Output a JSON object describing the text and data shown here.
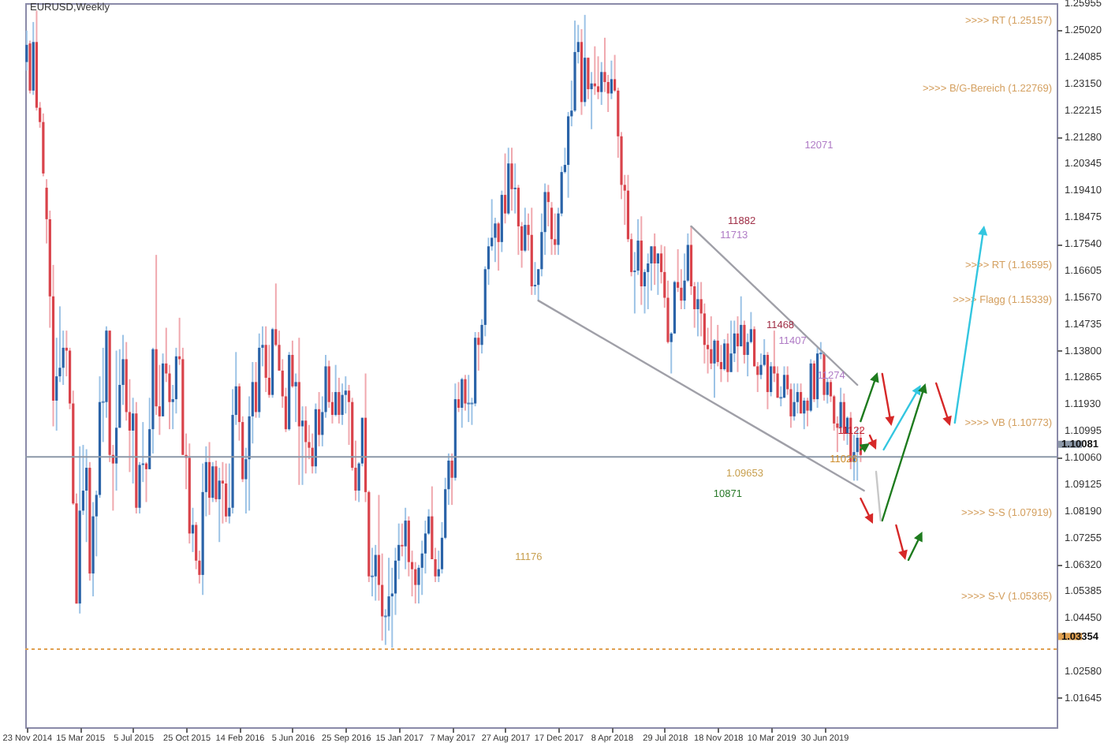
{
  "chart_data": {
    "type": "candlestick",
    "title": "EURUSD,Weekly",
    "xlim": [
      "2014-11-20",
      "2020-11-01"
    ],
    "xticks": [
      {
        "value": "2014-11-23",
        "label": "23 Nov 2014"
      },
      {
        "value": "2015-03-15",
        "label": "15 Mar 2015"
      },
      {
        "value": "2015-07-05",
        "label": "5 Jul 2015"
      },
      {
        "value": "2015-10-25",
        "label": "25 Oct 2015"
      },
      {
        "value": "2016-02-14",
        "label": "14 Feb 2016"
      },
      {
        "value": "2016-06-05",
        "label": "5 Jun 2016"
      },
      {
        "value": "2016-09-25",
        "label": "25 Sep 2016"
      },
      {
        "value": "2017-01-15",
        "label": "15 Jan 2017"
      },
      {
        "value": "2017-05-07",
        "label": "7 May 2017"
      },
      {
        "value": "2017-08-27",
        "label": "27 Aug 2017"
      },
      {
        "value": "2017-12-17",
        "label": "17 Dec 2017"
      },
      {
        "value": "2018-04-08",
        "label": "8 Apr 2018"
      },
      {
        "value": "2018-07-29",
        "label": "29 Jul 2018"
      },
      {
        "value": "2018-11-18",
        "label": "18 Nov 2018"
      },
      {
        "value": "2019-03-10",
        "label": "10 Mar 2019"
      },
      {
        "value": "2019-06-30",
        "label": "30 Jun 2019"
      }
    ],
    "ylim": [
      1.0062,
      1.2596
    ],
    "yticks": [
      {
        "value": 1.25955,
        "label": "1.25955"
      },
      {
        "value": 1.2502,
        "label": "1.25020"
      },
      {
        "value": 1.24085,
        "label": "1.24085"
      },
      {
        "value": 1.2315,
        "label": "1.23150"
      },
      {
        "value": 1.22215,
        "label": "1.22215"
      },
      {
        "value": 1.2128,
        "label": "1.21280"
      },
      {
        "value": 1.20345,
        "label": "1.20345"
      },
      {
        "value": 1.1941,
        "label": "1.19410"
      },
      {
        "value": 1.18475,
        "label": "1.18475"
      },
      {
        "value": 1.1754,
        "label": "1.17540"
      },
      {
        "value": 1.16605,
        "label": "1.16605"
      },
      {
        "value": 1.1567,
        "label": "1.15670"
      },
      {
        "value": 1.14735,
        "label": "1.14735"
      },
      {
        "value": 1.138,
        "label": "1.13800"
      },
      {
        "value": 1.12865,
        "label": "1.12865"
      },
      {
        "value": 1.1193,
        "label": "1.11930"
      },
      {
        "value": 1.10995,
        "label": "1.10995"
      },
      {
        "value": 1.1006,
        "label": "1.10060"
      },
      {
        "value": 1.09125,
        "label": "1.09125"
      },
      {
        "value": 1.0819,
        "label": "1.08190"
      },
      {
        "value": 1.07255,
        "label": "1.07255"
      },
      {
        "value": 1.0632,
        "label": "1.06320"
      },
      {
        "value": 1.05385,
        "label": "1.05385"
      },
      {
        "value": 1.0445,
        "label": "1.04450"
      },
      {
        "value": 1.0258,
        "label": "1.02580"
      },
      {
        "value": 1.01645,
        "label": "1.01645"
      }
    ],
    "x": [
      "2014-11-23",
      "2014-11-30",
      "2014-12-07",
      "2014-12-14",
      "2014-12-21",
      "2014-12-28",
      "2015-01-04",
      "2015-01-11",
      "2015-01-18",
      "2015-01-25",
      "2015-02-01",
      "2015-02-08",
      "2015-02-15",
      "2015-02-22",
      "2015-03-01",
      "2015-03-08",
      "2015-03-15",
      "2015-03-22",
      "2015-03-29",
      "2015-04-05",
      "2015-04-12",
      "2015-04-19",
      "2015-04-26",
      "2015-05-03",
      "2015-05-10",
      "2015-05-17",
      "2015-05-24",
      "2015-05-31",
      "2015-06-07",
      "2015-06-14",
      "2015-06-21",
      "2015-06-28",
      "2015-07-05",
      "2015-07-12",
      "2015-07-19",
      "2015-07-26",
      "2015-08-02",
      "2015-08-09",
      "2015-08-16",
      "2015-08-23",
      "2015-08-30",
      "2015-09-06",
      "2015-09-13",
      "2015-09-20",
      "2015-09-27",
      "2015-10-04",
      "2015-10-11",
      "2015-10-18",
      "2015-10-25",
      "2015-11-01",
      "2015-11-08",
      "2015-11-15",
      "2015-11-22",
      "2015-11-29",
      "2015-12-06",
      "2015-12-13",
      "2015-12-20",
      "2015-12-27",
      "2016-01-03",
      "2016-01-10",
      "2016-01-17",
      "2016-01-24",
      "2016-01-31",
      "2016-02-07",
      "2016-02-14",
      "2016-02-21",
      "2016-02-28",
      "2016-03-06",
      "2016-03-13",
      "2016-03-20",
      "2016-03-27",
      "2016-04-03",
      "2016-04-10",
      "2016-04-17",
      "2016-04-24",
      "2016-05-01",
      "2016-05-08",
      "2016-05-15",
      "2016-05-22",
      "2016-05-29",
      "2016-06-05",
      "2016-06-12",
      "2016-06-19",
      "2016-06-26",
      "2016-07-03",
      "2016-07-10",
      "2016-07-17",
      "2016-07-24",
      "2016-07-31",
      "2016-08-07",
      "2016-08-14",
      "2016-08-21",
      "2016-08-28",
      "2016-09-04",
      "2016-09-11",
      "2016-09-18",
      "2016-09-25",
      "2016-10-02",
      "2016-10-09",
      "2016-10-16",
      "2016-10-23",
      "2016-10-30",
      "2016-11-06",
      "2016-11-13",
      "2016-11-20",
      "2016-11-27",
      "2016-12-04",
      "2016-12-11",
      "2016-12-18",
      "2016-12-25",
      "2017-01-01",
      "2017-01-08",
      "2017-01-15",
      "2017-01-22",
      "2017-01-29",
      "2017-02-05",
      "2017-02-12",
      "2017-02-19",
      "2017-02-26",
      "2017-03-05",
      "2017-03-12",
      "2017-03-19",
      "2017-03-26",
      "2017-04-02",
      "2017-04-09",
      "2017-04-16",
      "2017-04-23",
      "2017-04-30",
      "2017-05-07",
      "2017-05-14",
      "2017-05-21",
      "2017-05-28",
      "2017-06-04",
      "2017-06-11",
      "2017-06-18",
      "2017-06-25",
      "2017-07-02",
      "2017-07-09",
      "2017-07-16",
      "2017-07-23",
      "2017-07-30",
      "2017-08-06",
      "2017-08-13",
      "2017-08-20",
      "2017-08-27",
      "2017-09-03",
      "2017-09-10",
      "2017-09-17",
      "2017-09-24",
      "2017-10-01",
      "2017-10-08",
      "2017-10-15",
      "2017-10-22",
      "2017-10-29",
      "2017-11-05",
      "2017-11-12",
      "2017-11-19",
      "2017-11-26",
      "2017-12-03",
      "2017-12-10",
      "2017-12-17",
      "2017-12-24",
      "2017-12-31",
      "2018-01-07",
      "2018-01-14",
      "2018-01-21",
      "2018-01-28",
      "2018-02-04",
      "2018-02-11",
      "2018-02-18",
      "2018-02-25",
      "2018-03-04",
      "2018-03-11",
      "2018-03-18",
      "2018-03-25",
      "2018-04-01",
      "2018-04-08",
      "2018-04-15",
      "2018-04-22",
      "2018-04-29",
      "2018-05-06",
      "2018-05-13",
      "2018-05-20",
      "2018-05-27",
      "2018-06-03",
      "2018-06-10",
      "2018-06-17",
      "2018-06-24",
      "2018-07-01",
      "2018-07-08",
      "2018-07-15",
      "2018-07-22",
      "2018-07-29",
      "2018-08-05",
      "2018-08-12",
      "2018-08-19",
      "2018-08-26",
      "2018-09-02",
      "2018-09-09",
      "2018-09-16",
      "2018-09-23",
      "2018-09-30",
      "2018-10-07",
      "2018-10-14",
      "2018-10-21",
      "2018-10-28",
      "2018-11-04",
      "2018-11-11",
      "2018-11-18",
      "2018-11-25",
      "2018-12-02",
      "2018-12-09",
      "2018-12-16",
      "2018-12-23",
      "2018-12-30",
      "2019-01-06",
      "2019-01-13",
      "2019-01-20",
      "2019-01-27",
      "2019-02-03",
      "2019-02-10",
      "2019-02-17",
      "2019-02-24",
      "2019-03-03",
      "2019-03-10",
      "2019-03-17",
      "2019-03-24",
      "2019-03-31",
      "2019-04-07",
      "2019-04-14",
      "2019-04-21",
      "2019-04-28",
      "2019-05-05",
      "2019-05-12",
      "2019-05-19",
      "2019-05-26",
      "2019-06-02",
      "2019-06-09",
      "2019-06-16",
      "2019-06-23",
      "2019-06-30",
      "2019-07-07",
      "2019-07-14",
      "2019-07-21",
      "2019-07-28",
      "2019-08-04",
      "2019-08-11",
      "2019-08-18",
      "2019-08-25",
      "2019-09-01",
      "2019-09-08",
      "2019-09-15"
    ],
    "ohlc": [
      [
        1.239,
        1.25,
        1.236,
        1.245
      ],
      [
        1.2455,
        1.2465,
        1.228,
        1.229
      ],
      [
        1.229,
        1.253,
        1.2275,
        1.246
      ],
      [
        1.246,
        1.257,
        1.222,
        1.223
      ],
      [
        1.223,
        1.225,
        1.216,
        1.218
      ],
      [
        1.218,
        1.221,
        1.199,
        1.2
      ],
      [
        1.195,
        1.198,
        1.1755,
        1.184
      ],
      [
        1.184,
        1.187,
        1.146,
        1.157
      ],
      [
        1.157,
        1.168,
        1.1115,
        1.1205
      ],
      [
        1.1205,
        1.1425,
        1.11,
        1.129
      ],
      [
        1.129,
        1.1535,
        1.127,
        1.132
      ],
      [
        1.132,
        1.145,
        1.126,
        1.139
      ],
      [
        1.139,
        1.145,
        1.129,
        1.138
      ],
      [
        1.138,
        1.139,
        1.1175,
        1.1195
      ],
      [
        1.1195,
        1.124,
        1.084,
        1.0845
      ],
      [
        1.0845,
        1.088,
        1.0495,
        1.0495
      ],
      [
        1.0495,
        1.1045,
        1.046,
        1.082
      ],
      [
        1.082,
        1.105,
        1.0805,
        1.089
      ],
      [
        1.089,
        1.1035,
        1.071,
        1.097
      ],
      [
        1.097,
        1.099,
        1.0575,
        1.06
      ],
      [
        1.06,
        1.085,
        1.052,
        1.08
      ],
      [
        1.08,
        1.089,
        1.066,
        1.0875
      ],
      [
        1.0875,
        1.129,
        1.0865,
        1.12
      ],
      [
        1.12,
        1.139,
        1.106,
        1.12
      ],
      [
        1.12,
        1.1465,
        1.1145,
        1.145
      ],
      [
        1.145,
        1.145,
        1.099,
        1.1015
      ],
      [
        1.1015,
        1.105,
        1.082,
        1.0985
      ],
      [
        1.0985,
        1.138,
        1.089,
        1.111
      ],
      [
        1.111,
        1.1385,
        1.111,
        1.126
      ],
      [
        1.126,
        1.1435,
        1.119,
        1.135
      ],
      [
        1.135,
        1.141,
        1.1135,
        1.1165
      ],
      [
        1.1165,
        1.128,
        1.0955,
        1.11
      ],
      [
        1.11,
        1.1215,
        1.0915,
        1.116
      ],
      [
        1.116,
        1.12,
        1.081,
        1.083
      ],
      [
        1.083,
        1.099,
        1.081,
        1.098
      ],
      [
        1.098,
        1.113,
        1.092,
        1.0985
      ],
      [
        1.0985,
        1.099,
        1.085,
        1.0965
      ],
      [
        1.0965,
        1.1215,
        1.0965,
        1.1105
      ],
      [
        1.1105,
        1.139,
        1.102,
        1.1385
      ],
      [
        1.1385,
        1.1715,
        1.1155,
        1.1185
      ],
      [
        1.1185,
        1.133,
        1.1085,
        1.115
      ],
      [
        1.115,
        1.137,
        1.115,
        1.1335
      ],
      [
        1.1335,
        1.146,
        1.127,
        1.13
      ],
      [
        1.13,
        1.133,
        1.1105,
        1.12
      ],
      [
        1.12,
        1.126,
        1.1105,
        1.121
      ],
      [
        1.121,
        1.139,
        1.116,
        1.136
      ],
      [
        1.136,
        1.1495,
        1.133,
        1.135
      ],
      [
        1.135,
        1.139,
        1.1015,
        1.1015
      ],
      [
        1.1015,
        1.109,
        1.0895,
        1.1005
      ],
      [
        1.1005,
        1.1055,
        1.0705,
        1.074
      ],
      [
        1.074,
        1.083,
        1.0675,
        1.077
      ],
      [
        1.077,
        1.078,
        1.0615,
        1.0645
      ],
      [
        1.0645,
        1.068,
        1.0565,
        1.0595
      ],
      [
        1.0595,
        1.0985,
        1.0525,
        1.0885
      ],
      [
        1.0885,
        1.1045,
        1.08,
        1.099
      ],
      [
        1.099,
        1.106,
        1.0805,
        1.0865
      ],
      [
        1.0865,
        1.099,
        1.085,
        1.0975
      ],
      [
        1.0975,
        1.0995,
        1.085,
        1.086
      ],
      [
        1.086,
        1.097,
        1.071,
        1.0925
      ],
      [
        1.0925,
        1.099,
        1.0775,
        1.0915
      ],
      [
        1.0915,
        1.0985,
        1.078,
        1.08
      ],
      [
        1.08,
        1.0985,
        1.0775,
        1.083
      ],
      [
        1.083,
        1.1245,
        1.081,
        1.1155
      ],
      [
        1.1155,
        1.1375,
        1.112,
        1.1255
      ],
      [
        1.1255,
        1.1265,
        1.1065,
        1.113
      ],
      [
        1.113,
        1.115,
        1.092,
        1.093
      ],
      [
        1.093,
        1.104,
        1.081,
        1.1
      ],
      [
        1.1,
        1.122,
        1.082,
        1.115
      ],
      [
        1.115,
        1.134,
        1.1055,
        1.127
      ],
      [
        1.127,
        1.134,
        1.1145,
        1.1165
      ],
      [
        1.1165,
        1.144,
        1.1145,
        1.139
      ],
      [
        1.139,
        1.1465,
        1.1325,
        1.14
      ],
      [
        1.14,
        1.1465,
        1.1235,
        1.1285
      ],
      [
        1.1285,
        1.14,
        1.1215,
        1.1225
      ],
      [
        1.1225,
        1.146,
        1.1215,
        1.1455
      ],
      [
        1.1455,
        1.1615,
        1.1395,
        1.14
      ],
      [
        1.14,
        1.145,
        1.131,
        1.131
      ],
      [
        1.131,
        1.135,
        1.118,
        1.122
      ],
      [
        1.122,
        1.125,
        1.1095,
        1.1105
      ],
      [
        1.1105,
        1.1375,
        1.11,
        1.1365
      ],
      [
        1.1365,
        1.1415,
        1.125,
        1.1255
      ],
      [
        1.1255,
        1.13,
        1.113,
        1.127
      ],
      [
        1.127,
        1.1425,
        1.091,
        1.1115
      ],
      [
        1.1115,
        1.1185,
        1.091,
        1.1135
      ],
      [
        1.1135,
        1.1185,
        1.095,
        1.106
      ],
      [
        1.106,
        1.112,
        1.1,
        1.104
      ],
      [
        1.104,
        1.109,
        1.095,
        1.0975
      ],
      [
        1.0975,
        1.1195,
        1.095,
        1.1175
      ],
      [
        1.1175,
        1.1235,
        1.1045,
        1.1085
      ],
      [
        1.1085,
        1.122,
        1.1045,
        1.1165
      ],
      [
        1.1165,
        1.1365,
        1.1145,
        1.1325
      ],
      [
        1.1325,
        1.1345,
        1.118,
        1.12
      ],
      [
        1.12,
        1.1235,
        1.1125,
        1.1155
      ],
      [
        1.1155,
        1.133,
        1.115,
        1.1235
      ],
      [
        1.1235,
        1.1285,
        1.1125,
        1.1155
      ],
      [
        1.1155,
        1.1265,
        1.112,
        1.1225
      ],
      [
        1.1225,
        1.129,
        1.116,
        1.124
      ],
      [
        1.124,
        1.126,
        1.105,
        1.12
      ],
      [
        1.12,
        1.1215,
        1.096,
        1.097
      ],
      [
        1.097,
        1.1065,
        1.0855,
        1.089
      ],
      [
        1.089,
        1.099,
        1.085,
        1.0985
      ],
      [
        1.0985,
        1.1145,
        1.0975,
        1.1145
      ],
      [
        1.1145,
        1.13,
        1.085,
        1.0885
      ],
      [
        1.0885,
        1.089,
        1.057,
        1.059
      ],
      [
        1.059,
        1.069,
        1.052,
        1.059
      ],
      [
        1.059,
        1.07,
        1.0505,
        1.0665
      ],
      [
        1.0665,
        1.0875,
        1.0505,
        1.056
      ],
      [
        1.056,
        1.067,
        1.0365,
        1.045
      ],
      [
        1.045,
        1.0475,
        1.035,
        1.045
      ],
      [
        1.045,
        1.0655,
        1.04,
        1.052
      ],
      [
        1.052,
        1.062,
        1.034,
        1.053
      ],
      [
        1.053,
        1.069,
        1.0455,
        1.0645
      ],
      [
        1.0645,
        1.0775,
        1.058,
        1.07
      ],
      [
        1.07,
        1.0775,
        1.066,
        1.0695
      ],
      [
        1.0695,
        1.083,
        1.0615,
        1.0785
      ],
      [
        1.0785,
        1.08,
        1.059,
        1.064
      ],
      [
        1.064,
        1.068,
        1.052,
        1.0615
      ],
      [
        1.0615,
        1.064,
        1.0495,
        1.056
      ],
      [
        1.056,
        1.063,
        1.0495,
        1.062
      ],
      [
        1.062,
        1.0715,
        1.0525,
        1.067
      ],
      [
        1.067,
        1.0785,
        1.06,
        1.074
      ],
      [
        1.074,
        1.0825,
        1.0735,
        1.08
      ],
      [
        1.08,
        1.0905,
        1.065,
        1.065
      ],
      [
        1.065,
        1.069,
        1.057,
        1.059
      ],
      [
        1.059,
        1.068,
        1.057,
        1.0615
      ],
      [
        1.0615,
        1.078,
        1.06,
        1.0725
      ],
      [
        1.0725,
        1.0935,
        1.072,
        1.0895
      ],
      [
        1.0895,
        1.102,
        1.084,
        1.0995
      ],
      [
        1.0995,
        1.102,
        1.084,
        1.0935
      ],
      [
        1.0935,
        1.1265,
        1.0925,
        1.121
      ],
      [
        1.121,
        1.127,
        1.1165,
        1.118
      ],
      [
        1.118,
        1.1285,
        1.111,
        1.128
      ],
      [
        1.128,
        1.1295,
        1.117,
        1.1195
      ],
      [
        1.1195,
        1.1295,
        1.113,
        1.1195
      ],
      [
        1.1195,
        1.1215,
        1.112,
        1.1195
      ],
      [
        1.1195,
        1.1445,
        1.1185,
        1.1425
      ],
      [
        1.1425,
        1.1445,
        1.131,
        1.14
      ],
      [
        1.14,
        1.149,
        1.137,
        1.147
      ],
      [
        1.147,
        1.1675,
        1.143,
        1.1665
      ],
      [
        1.1665,
        1.1775,
        1.161,
        1.1745
      ],
      [
        1.1745,
        1.191,
        1.173,
        1.1775
      ],
      [
        1.1775,
        1.1845,
        1.169,
        1.1825
      ],
      [
        1.1825,
        1.183,
        1.166,
        1.176
      ],
      [
        1.176,
        1.194,
        1.1725,
        1.1925
      ],
      [
        1.1925,
        1.207,
        1.1825,
        1.186
      ],
      [
        1.186,
        1.209,
        1.1855,
        1.2035
      ],
      [
        1.2035,
        1.209,
        1.187,
        1.1945
      ],
      [
        1.1945,
        1.2035,
        1.186,
        1.195
      ],
      [
        1.195,
        1.196,
        1.1715,
        1.1815
      ],
      [
        1.1815,
        1.183,
        1.167,
        1.173
      ],
      [
        1.173,
        1.188,
        1.1725,
        1.182
      ],
      [
        1.182,
        1.186,
        1.173,
        1.1785
      ],
      [
        1.1785,
        1.188,
        1.1575,
        1.1605
      ],
      [
        1.1605,
        1.169,
        1.1575,
        1.161
      ],
      [
        1.161,
        1.1665,
        1.1555,
        1.1665
      ],
      [
        1.1665,
        1.186,
        1.164,
        1.1795
      ],
      [
        1.1795,
        1.1965,
        1.1715,
        1.1935
      ],
      [
        1.1935,
        1.196,
        1.1815,
        1.19
      ],
      [
        1.188,
        1.19,
        1.1715,
        1.177
      ],
      [
        1.177,
        1.186,
        1.1715,
        1.175
      ],
      [
        1.175,
        1.188,
        1.1715,
        1.186
      ],
      [
        1.186,
        1.2025,
        1.185,
        1.2005
      ],
      [
        1.2005,
        1.209,
        1.2,
        1.203
      ],
      [
        1.203,
        1.2215,
        1.1915,
        1.22
      ],
      [
        1.22,
        1.2325,
        1.2165,
        1.222
      ],
      [
        1.222,
        1.2535,
        1.2215,
        1.2425
      ],
      [
        1.2425,
        1.252,
        1.2385,
        1.246
      ],
      [
        1.246,
        1.2505,
        1.2205,
        1.225
      ],
      [
        1.225,
        1.2555,
        1.2235,
        1.2405
      ],
      [
        1.2405,
        1.2405,
        1.226,
        1.2295
      ],
      [
        1.2295,
        1.2355,
        1.2155,
        1.2315
      ],
      [
        1.2315,
        1.2445,
        1.2275,
        1.2305
      ],
      [
        1.2305,
        1.241,
        1.226,
        1.2285
      ],
      [
        1.2285,
        1.239,
        1.224,
        1.2355
      ],
      [
        1.2355,
        1.2475,
        1.2285,
        1.232
      ],
      [
        1.232,
        1.2345,
        1.2215,
        1.228
      ],
      [
        1.228,
        1.2395,
        1.226,
        1.233
      ],
      [
        1.233,
        1.2415,
        1.2285,
        1.229
      ],
      [
        1.229,
        1.23,
        1.2055,
        1.213
      ],
      [
        1.213,
        1.2145,
        1.191,
        1.196
      ],
      [
        1.196,
        1.1995,
        1.182,
        1.194
      ],
      [
        1.194,
        1.1995,
        1.176,
        1.177
      ],
      [
        1.177,
        1.179,
        1.164,
        1.1655
      ],
      [
        1.1655,
        1.1725,
        1.151,
        1.166
      ],
      [
        1.166,
        1.184,
        1.1645,
        1.1765
      ],
      [
        1.1765,
        1.185,
        1.154,
        1.1605
      ],
      [
        1.1605,
        1.1665,
        1.151,
        1.1655
      ],
      [
        1.1655,
        1.172,
        1.1525,
        1.1685
      ],
      [
        1.1685,
        1.1745,
        1.159,
        1.1745
      ],
      [
        1.1745,
        1.179,
        1.161,
        1.1685
      ],
      [
        1.1685,
        1.172,
        1.1575,
        1.172
      ],
      [
        1.172,
        1.175,
        1.1615,
        1.1655
      ],
      [
        1.1655,
        1.1745,
        1.153,
        1.1565
      ],
      [
        1.1565,
        1.1625,
        1.1405,
        1.141
      ],
      [
        1.141,
        1.1445,
        1.13,
        1.144
      ],
      [
        1.144,
        1.1625,
        1.144,
        1.162
      ],
      [
        1.162,
        1.1735,
        1.1585,
        1.16
      ],
      [
        1.16,
        1.1665,
        1.1525,
        1.1555
      ],
      [
        1.1555,
        1.172,
        1.1525,
        1.1625
      ],
      [
        1.1625,
        1.179,
        1.162,
        1.175
      ],
      [
        1.175,
        1.1815,
        1.1575,
        1.1605
      ],
      [
        1.1605,
        1.162,
        1.146,
        1.1525
      ],
      [
        1.1525,
        1.162,
        1.143,
        1.156
      ],
      [
        1.156,
        1.162,
        1.143,
        1.151
      ],
      [
        1.151,
        1.1545,
        1.1335,
        1.14
      ],
      [
        1.14,
        1.146,
        1.13,
        1.1385
      ],
      [
        1.1385,
        1.15,
        1.1315,
        1.1335
      ],
      [
        1.1335,
        1.142,
        1.1215,
        1.1415
      ],
      [
        1.1415,
        1.147,
        1.1325,
        1.134
      ],
      [
        1.134,
        1.14,
        1.127,
        1.1315
      ],
      [
        1.1315,
        1.142,
        1.131,
        1.1405
      ],
      [
        1.1405,
        1.144,
        1.127,
        1.1305
      ],
      [
        1.1305,
        1.1485,
        1.1305,
        1.137
      ],
      [
        1.137,
        1.1485,
        1.134,
        1.144
      ],
      [
        1.144,
        1.15,
        1.1305,
        1.1395
      ],
      [
        1.1395,
        1.157,
        1.1395,
        1.147
      ],
      [
        1.147,
        1.1485,
        1.1335,
        1.1365
      ],
      [
        1.1365,
        1.144,
        1.129,
        1.141
      ],
      [
        1.141,
        1.1515,
        1.1405,
        1.1455
      ],
      [
        1.1455,
        1.1465,
        1.1325,
        1.1325
      ],
      [
        1.1325,
        1.134,
        1.1235,
        1.1295
      ],
      [
        1.1295,
        1.137,
        1.128,
        1.133
      ],
      [
        1.133,
        1.142,
        1.1325,
        1.1365
      ],
      [
        1.1365,
        1.1375,
        1.1175,
        1.1235
      ],
      [
        1.1235,
        1.134,
        1.122,
        1.1325
      ],
      [
        1.1325,
        1.145,
        1.127,
        1.13
      ],
      [
        1.13,
        1.1325,
        1.1215,
        1.1215
      ],
      [
        1.1215,
        1.1255,
        1.1185,
        1.1215
      ],
      [
        1.1215,
        1.1325,
        1.1215,
        1.1295
      ],
      [
        1.1295,
        1.1325,
        1.1225,
        1.1245
      ],
      [
        1.1245,
        1.1265,
        1.111,
        1.115
      ],
      [
        1.115,
        1.1265,
        1.1135,
        1.12
      ],
      [
        1.12,
        1.1265,
        1.116,
        1.1235
      ],
      [
        1.1235,
        1.1265,
        1.116,
        1.116
      ],
      [
        1.116,
        1.1215,
        1.1105,
        1.1205
      ],
      [
        1.1205,
        1.1215,
        1.1115,
        1.117
      ],
      [
        1.117,
        1.135,
        1.1165,
        1.1335
      ],
      [
        1.1335,
        1.1345,
        1.12,
        1.121
      ],
      [
        1.121,
        1.1395,
        1.118,
        1.137
      ],
      [
        1.137,
        1.141,
        1.135,
        1.137
      ],
      [
        1.137,
        1.1375,
        1.1205,
        1.1225
      ],
      [
        1.1225,
        1.1285,
        1.1195,
        1.127
      ],
      [
        1.127,
        1.128,
        1.12,
        1.122
      ],
      [
        1.122,
        1.1225,
        1.11,
        1.1125
      ],
      [
        1.1125,
        1.115,
        1.1025,
        1.111
      ],
      [
        1.111,
        1.125,
        1.1095,
        1.12
      ],
      [
        1.12,
        1.123,
        1.1065,
        1.109
      ],
      [
        1.109,
        1.115,
        1.105,
        1.1145
      ],
      [
        1.1145,
        1.1165,
        1.0965,
        1.099
      ],
      [
        1.099,
        1.1085,
        1.0925,
        1.1025
      ],
      [
        1.1025,
        1.111,
        1.0925,
        1.1075
      ],
      [
        1.1075,
        1.111,
        1.099,
        1.1015
      ]
    ],
    "series": [
      {
        "type": "line",
        "x": [
          "2017-11-05",
          "2019-09-22"
        ],
        "values": [
          1.1555,
          1.089
        ],
        "color": "#a0a0a8"
      },
      {
        "type": "line",
        "x": [
          "2018-09-23",
          "2019-09-08"
        ],
        "values": [
          1.1815,
          1.126
        ],
        "color": "#a0a0a8"
      }
    ],
    "ref_lines": [
      {
        "axis": "y",
        "value": 1.10081,
        "label": "1.10081",
        "color": "#8c98a8"
      },
      {
        "axis": "y",
        "value": 1.03354,
        "label": "1.03354",
        "color": "#e0a050",
        "line_style": "dotted"
      }
    ],
    "annotations": [
      "12071",
      "11882",
      "11713",
      "11468",
      "11407",
      "11274",
      "11122",
      "11026",
      "10871",
      "11176",
      "1.09653",
      ">>>> RT (1.25157)",
      ">>>> B/G-Bereich (1.22769)",
      ">>>> RT (1.16595)",
      ">>>> Flagg (1.15339)",
      ">>>> VB (1.10773)",
      ">>>> S-S (1.07919)",
      ">>>> S-V (1.05365)"
    ]
  }
}
